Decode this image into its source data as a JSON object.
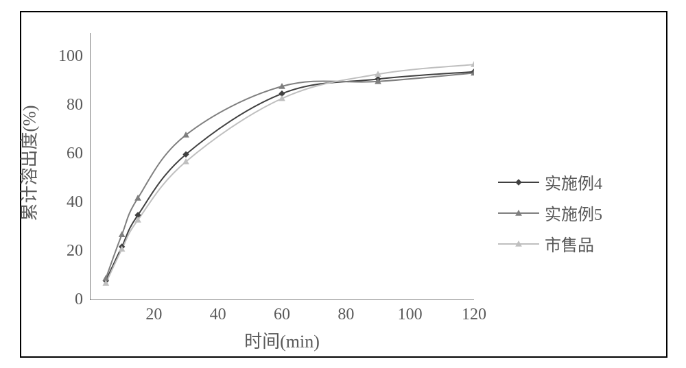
{
  "chart": {
    "type": "line",
    "background_color": "#ffffff",
    "border_color": "#000000",
    "axis_color": "#595959",
    "text_color": "#595959",
    "label_fontsize": 24,
    "axis_title_fontsize": 26,
    "x_axis": {
      "title": "时间(min)",
      "xlim": [
        0,
        120
      ],
      "ticks": [
        20,
        40,
        60,
        80,
        100,
        120
      ],
      "tick_labels": [
        "20",
        "40",
        "60",
        "80",
        "100",
        "120"
      ]
    },
    "y_axis": {
      "title": "累计溶出度(%)",
      "ylim": [
        0,
        110
      ],
      "ticks": [
        0,
        20,
        40,
        60,
        80,
        100
      ],
      "tick_labels": [
        "0",
        "20",
        "40",
        "60",
        "80",
        "100"
      ]
    },
    "series": [
      {
        "name": "实施例4",
        "color": "#404040",
        "line_width": 2,
        "marker": "diamond",
        "marker_size": 8,
        "marker_fill": "#404040",
        "x": [
          5,
          10,
          15,
          30,
          60,
          90,
          120
        ],
        "y": [
          8,
          22,
          35,
          60,
          85,
          91,
          94
        ]
      },
      {
        "name": "实施例5",
        "color": "#7f7f7f",
        "line_width": 2,
        "marker": "triangle",
        "marker_size": 8,
        "marker_fill": "#7f7f7f",
        "x": [
          5,
          10,
          15,
          30,
          60,
          90,
          120
        ],
        "y": [
          9,
          27,
          42,
          68,
          88,
          90,
          93.5
        ]
      },
      {
        "name": "市售品",
        "color": "#bfbfbf",
        "line_width": 2,
        "marker": "triangle",
        "marker_size": 8,
        "marker_fill": "#bfbfbf",
        "x": [
          5,
          10,
          15,
          30,
          60,
          90,
          120
        ],
        "y": [
          7,
          21,
          33,
          57,
          83,
          93,
          97
        ]
      }
    ]
  }
}
